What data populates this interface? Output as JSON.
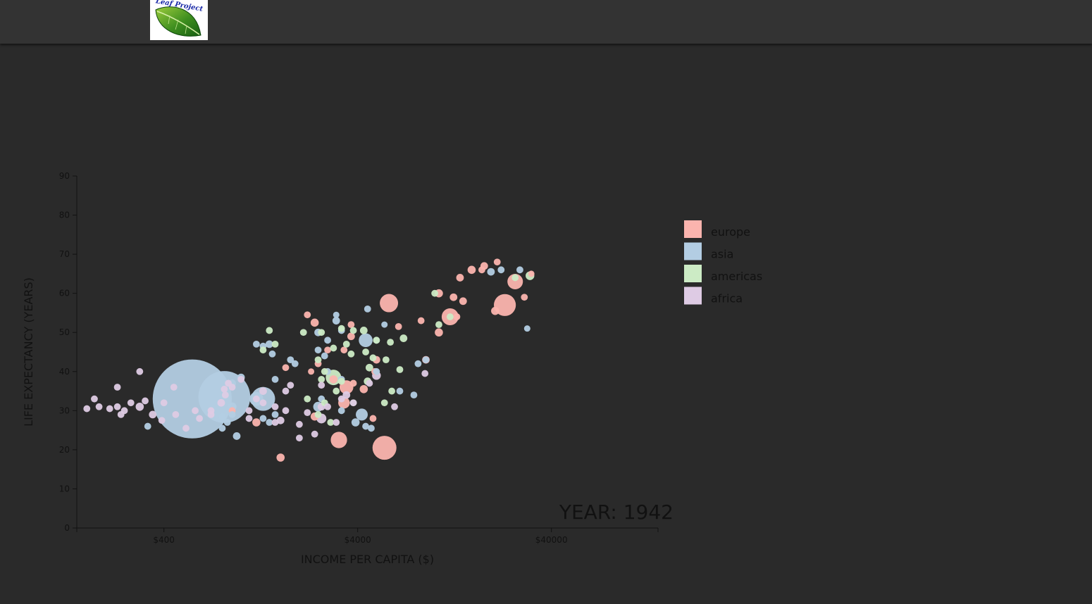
{
  "header": {
    "logo_text": "Leaf Project"
  },
  "colors": {
    "background": "#2a2a2a",
    "topbar": "#333333",
    "europe": "#fbb4ae",
    "asia": "#b3cde3",
    "americas": "#ccebc5",
    "africa": "#decbe4"
  },
  "chart_data": {
    "type": "scatter",
    "year_label": "YEAR: 1942",
    "xlabel": "INCOME PER CAPITA ($)",
    "ylabel": "LIFE EXPECTANCY (YEARS)",
    "x_scale": "log",
    "xlim": [
      142,
      142000
    ],
    "ylim": [
      0,
      90
    ],
    "x_ticks": [
      {
        "value": 400,
        "label": "$400"
      },
      {
        "value": 4000,
        "label": "$4000"
      },
      {
        "value": 40000,
        "label": "$40000"
      }
    ],
    "y_ticks": [
      {
        "value": 0,
        "label": "0"
      },
      {
        "value": 10,
        "label": "10"
      },
      {
        "value": 20,
        "label": "20"
      },
      {
        "value": 30,
        "label": "30"
      },
      {
        "value": 40,
        "label": "40"
      },
      {
        "value": 50,
        "label": "50"
      },
      {
        "value": 60,
        "label": "60"
      },
      {
        "value": 70,
        "label": "70"
      },
      {
        "value": 80,
        "label": "80"
      },
      {
        "value": 90,
        "label": "90"
      }
    ],
    "legend": [
      {
        "name": "europe",
        "color": "#fbb4ae"
      },
      {
        "name": "asia",
        "color": "#b3cde3"
      },
      {
        "name": "americas",
        "color": "#ccebc5"
      },
      {
        "name": "africa",
        "color": "#decbe4"
      }
    ],
    "series": [
      {
        "name": "europe",
        "points": [
          [
            21000,
            68
          ],
          [
            18000,
            67
          ],
          [
            17500,
            66
          ],
          [
            15500,
            66
          ],
          [
            13500,
            64
          ],
          [
            31500,
            65
          ],
          [
            26000,
            63
          ],
          [
            29000,
            59
          ],
          [
            14000,
            58
          ],
          [
            20500,
            55.5
          ],
          [
            10500,
            60
          ],
          [
            12500,
            59
          ],
          [
            13000,
            54
          ],
          [
            12000,
            54
          ],
          [
            10500,
            50
          ],
          [
            5800,
            57.5
          ],
          [
            8500,
            53
          ],
          [
            6500,
            51.5
          ],
          [
            23000,
            57
          ],
          [
            9000,
            43
          ],
          [
            2200,
            54.5
          ],
          [
            2400,
            52.5
          ],
          [
            3700,
            52
          ],
          [
            3700,
            49
          ],
          [
            3400,
            45.5
          ],
          [
            2800,
            45.5
          ],
          [
            2500,
            42
          ],
          [
            2300,
            40
          ],
          [
            3000,
            38
          ],
          [
            3800,
            37
          ],
          [
            4900,
            40
          ],
          [
            5000,
            43
          ],
          [
            4300,
            35.5
          ],
          [
            3400,
            32
          ],
          [
            4800,
            28
          ],
          [
            2400,
            28.5
          ],
          [
            1200,
            27
          ],
          [
            900,
            30
          ],
          [
            3200,
            22.5
          ],
          [
            5500,
            20.5
          ],
          [
            1700,
            41
          ],
          [
            1600,
            18
          ],
          [
            3500,
            36
          ]
        ],
        "pops": [
          5,
          6,
          5,
          7,
          6,
          4,
          25,
          5,
          6,
          7,
          7,
          6,
          5,
          30,
          7,
          35,
          5,
          5,
          50,
          6,
          5,
          7,
          5,
          6,
          5,
          5,
          5,
          4,
          7,
          5,
          5,
          6,
          7,
          14,
          5,
          7,
          7,
          5,
          28,
          60,
          5,
          7,
          20
        ]
      },
      {
        "name": "asia",
        "points": [
          [
            30000,
            51
          ],
          [
            22000,
            66
          ],
          [
            27500,
            66
          ],
          [
            19500,
            65.5
          ],
          [
            4500,
            56
          ],
          [
            3100,
            54.5
          ],
          [
            3100,
            53
          ],
          [
            5500,
            52
          ],
          [
            2500,
            50
          ],
          [
            3300,
            50.5
          ],
          [
            5000,
            48
          ],
          [
            4400,
            48
          ],
          [
            2800,
            48
          ],
          [
            1400,
            47
          ],
          [
            2500,
            45.5
          ],
          [
            1450,
            44.5
          ],
          [
            1300,
            46.5
          ],
          [
            2700,
            44
          ],
          [
            1800,
            43
          ],
          [
            1200,
            47
          ],
          [
            8200,
            42
          ],
          [
            5000,
            40
          ],
          [
            1000,
            38.5
          ],
          [
            900,
            37
          ],
          [
            1500,
            38
          ],
          [
            1200,
            33
          ],
          [
            900,
            31
          ],
          [
            900,
            29
          ],
          [
            800,
            28.5
          ],
          [
            1300,
            28
          ],
          [
            1400,
            27
          ],
          [
            850,
            27
          ],
          [
            1500,
            29
          ],
          [
            2600,
            33
          ],
          [
            3300,
            30
          ],
          [
            3900,
            27
          ],
          [
            4400,
            26
          ],
          [
            4700,
            25.5
          ],
          [
            950,
            23.5
          ],
          [
            800,
            25.5
          ],
          [
            6600,
            35
          ],
          [
            7800,
            34
          ],
          [
            9000,
            43
          ],
          [
            2800,
            40
          ],
          [
            330,
            26
          ],
          [
            560,
            33
          ],
          [
            820,
            33.5
          ],
          [
            1300,
            33
          ],
          [
            2500,
            31
          ],
          [
            4200,
            29
          ],
          [
            3300,
            38
          ],
          [
            1900,
            42
          ]
        ],
        "pops": [
          4,
          5,
          5,
          6,
          5,
          4,
          6,
          4,
          6,
          5,
          5,
          20,
          5,
          6,
          5,
          5,
          5,
          5,
          5,
          5,
          5,
          5,
          6,
          6,
          5,
          20,
          8,
          5,
          5,
          5,
          5,
          5,
          5,
          5,
          5,
          7,
          5,
          5,
          6,
          5,
          5,
          5,
          5,
          5,
          5,
          650,
          280,
          60,
          10,
          15,
          5,
          5
        ]
      },
      {
        "name": "americas",
        "points": [
          [
            31000,
            64.5
          ],
          [
            26000,
            64
          ],
          [
            10000,
            60
          ],
          [
            12000,
            54
          ],
          [
            10500,
            52
          ],
          [
            4300,
            50.5
          ],
          [
            3800,
            50.5
          ],
          [
            3300,
            51
          ],
          [
            3500,
            47
          ],
          [
            5000,
            48
          ],
          [
            5900,
            47.5
          ],
          [
            6900,
            48.5
          ],
          [
            4400,
            45
          ],
          [
            3000,
            46
          ],
          [
            2100,
            50
          ],
          [
            2600,
            50
          ],
          [
            1400,
            50.5
          ],
          [
            1500,
            47
          ],
          [
            1300,
            45.5
          ],
          [
            6600,
            40.5
          ],
          [
            4800,
            43.5
          ],
          [
            4600,
            41
          ],
          [
            2700,
            40
          ],
          [
            2500,
            43
          ],
          [
            5500,
            32
          ],
          [
            6000,
            35
          ],
          [
            3800,
            32
          ],
          [
            2700,
            32
          ],
          [
            2200,
            33
          ],
          [
            2500,
            29
          ],
          [
            2900,
            27
          ],
          [
            3000,
            38.5
          ],
          [
            3300,
            37.5
          ],
          [
            3100,
            35
          ],
          [
            4500,
            37.5
          ],
          [
            3700,
            44.5
          ],
          [
            2600,
            38
          ],
          [
            5600,
            43
          ]
        ],
        "pops": [
          8,
          5,
          5,
          5,
          5,
          6,
          5,
          5,
          5,
          5,
          5,
          6,
          5,
          5,
          5,
          5,
          5,
          5,
          5,
          5,
          5,
          6,
          5,
          5,
          5,
          5,
          5,
          5,
          5,
          5,
          5,
          25,
          5,
          5,
          6,
          5,
          5,
          5
        ]
      },
      {
        "name": "africa",
        "points": [
          [
            8900,
            39.5
          ],
          [
            5000,
            39
          ],
          [
            4600,
            37
          ],
          [
            3500,
            34
          ],
          [
            3300,
            33
          ],
          [
            3800,
            32
          ],
          [
            6200,
            31
          ],
          [
            2600,
            31
          ],
          [
            2800,
            31
          ],
          [
            2600,
            28
          ],
          [
            2200,
            29.5
          ],
          [
            2000,
            26.5
          ],
          [
            2400,
            24
          ],
          [
            2000,
            23
          ],
          [
            1600,
            27.5
          ],
          [
            1500,
            27
          ],
          [
            1700,
            30
          ],
          [
            1500,
            31
          ],
          [
            1700,
            35
          ],
          [
            1800,
            36.5
          ],
          [
            1300,
            35
          ],
          [
            1200,
            33
          ],
          [
            900,
            36
          ],
          [
            860,
            37
          ],
          [
            830,
            34
          ],
          [
            790,
            32
          ],
          [
            700,
            30
          ],
          [
            700,
            29
          ],
          [
            610,
            28
          ],
          [
            580,
            30
          ],
          [
            520,
            25.5
          ],
          [
            460,
            29
          ],
          [
            390,
            27.5
          ],
          [
            350,
            29
          ],
          [
            400,
            32
          ],
          [
            300,
            31
          ],
          [
            270,
            32
          ],
          [
            250,
            30
          ],
          [
            240,
            29
          ],
          [
            230,
            31
          ],
          [
            210,
            30.5
          ],
          [
            185,
            31
          ],
          [
            175,
            33
          ],
          [
            160,
            30.5
          ],
          [
            230,
            36
          ],
          [
            300,
            40
          ],
          [
            320,
            32.5
          ],
          [
            450,
            36
          ],
          [
            1000,
            38
          ],
          [
            1100,
            30
          ],
          [
            1300,
            32
          ],
          [
            2600,
            36.5
          ],
          [
            820,
            35.5
          ],
          [
            1100,
            28
          ],
          [
            3100,
            27
          ]
        ],
        "pops": [
          5,
          8,
          5,
          6,
          5,
          5,
          5,
          6,
          5,
          10,
          5,
          5,
          5,
          5,
          6,
          5,
          5,
          5,
          5,
          5,
          6,
          5,
          5,
          5,
          5,
          6,
          5,
          5,
          5,
          5,
          5,
          5,
          5,
          6,
          5,
          7,
          5,
          5,
          5,
          5,
          5,
          5,
          5,
          5,
          5,
          5,
          5,
          5,
          5,
          5,
          5,
          5,
          5,
          5,
          5
        ]
      }
    ]
  }
}
